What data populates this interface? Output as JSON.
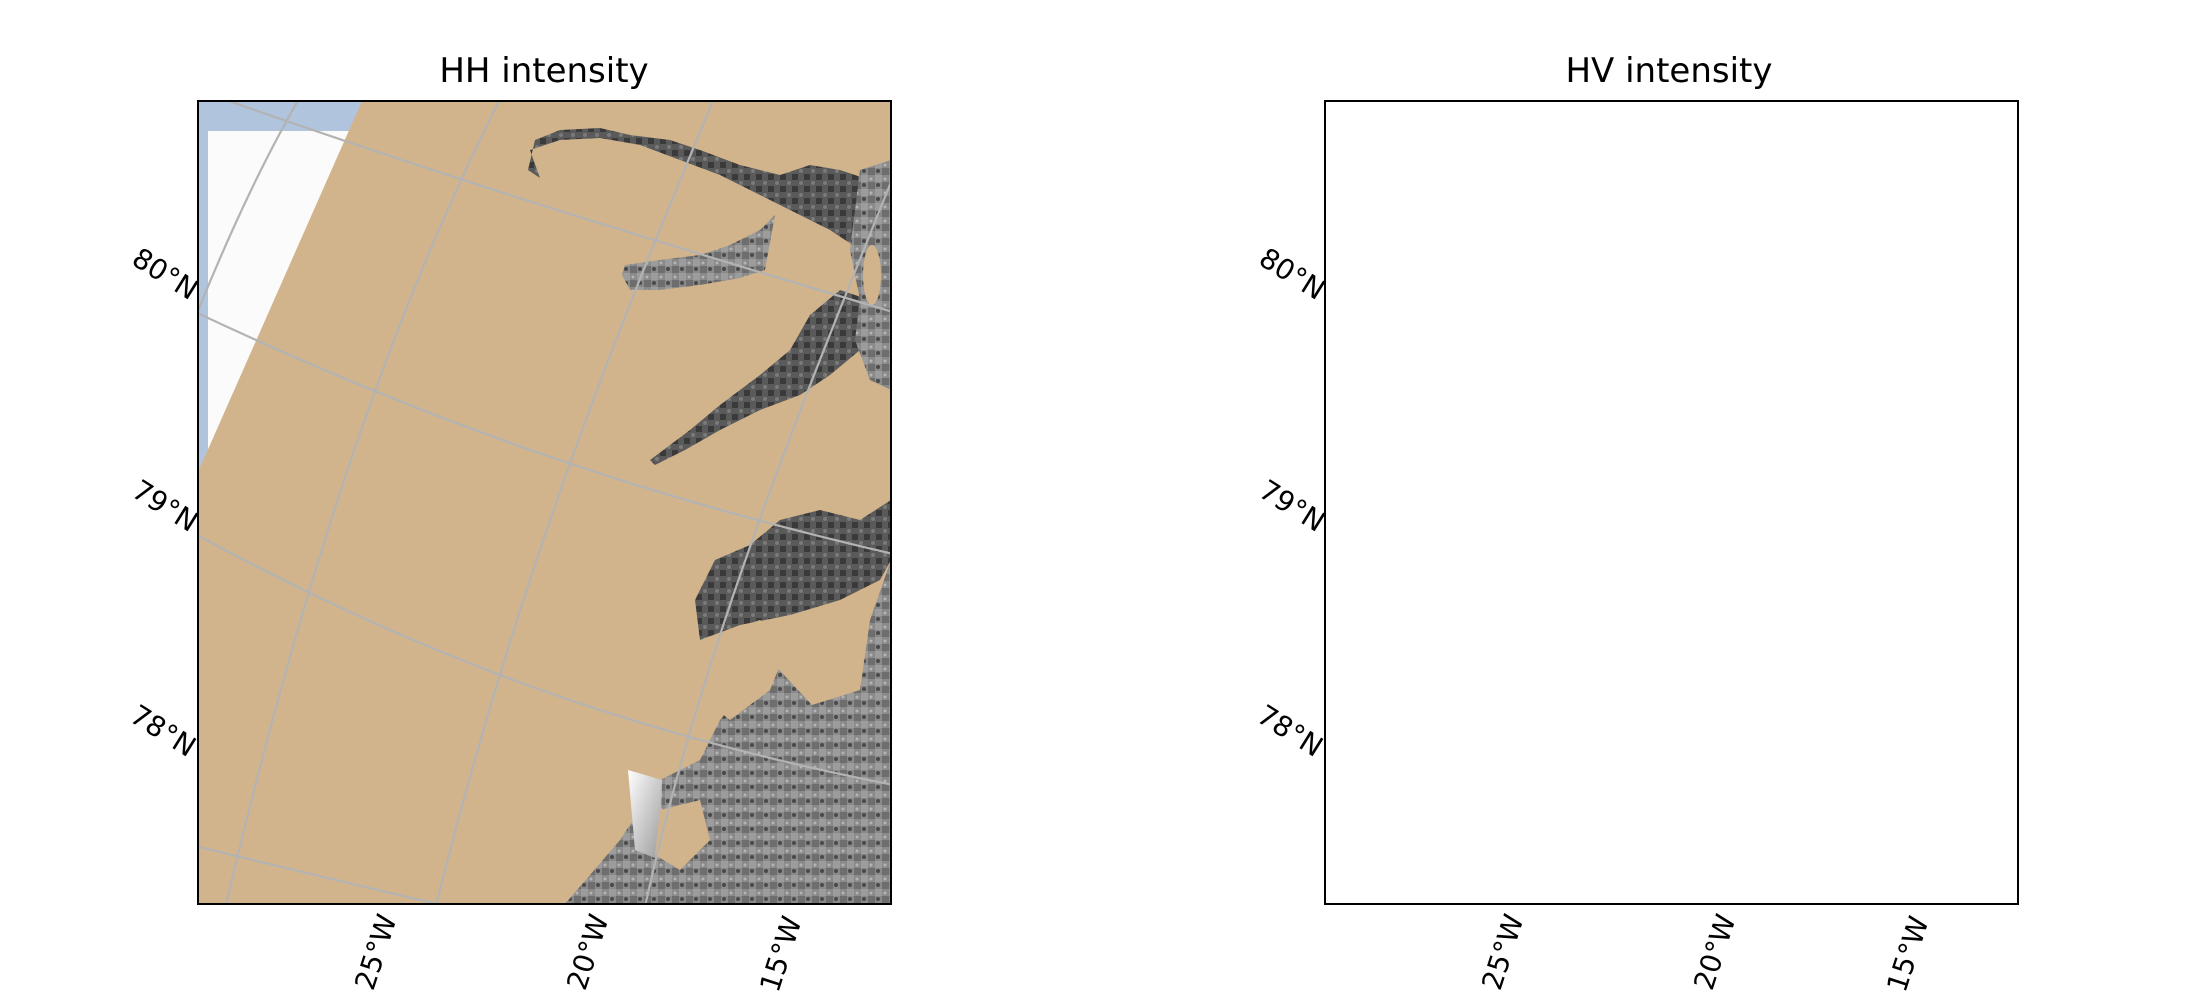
{
  "colors": {
    "land": "#d2b48c",
    "ocean": "#b0c4de",
    "no_data": "#fbfbfb",
    "graticule": "#b3b3b3",
    "frame": "#000000"
  },
  "panels": [
    {
      "title": "HH intensity",
      "lat_labels": [
        "80°N",
        "79°N",
        "78°N"
      ],
      "lon_labels": [
        "25°W",
        "20°W",
        "15°W"
      ]
    },
    {
      "title": "HV intensity",
      "lat_labels": [
        "80°N",
        "79°N",
        "78°N"
      ],
      "lon_labels": [
        "25°W",
        "20°W",
        "15°W"
      ]
    }
  ]
}
